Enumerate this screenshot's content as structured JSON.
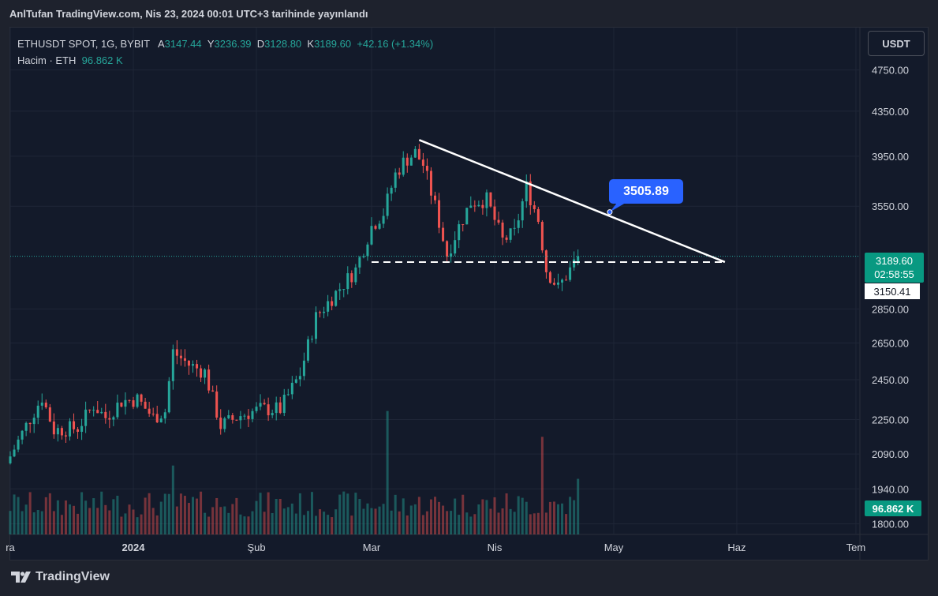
{
  "header": {
    "publish_text": "AnlTufan TradingView.com, Nis 23, 2024 00:01 UTC+3 tarihinde yayınlandı"
  },
  "legend": {
    "symbol_line": "ETHUSDT SPOT, 1G, BYBIT",
    "open_label": "A",
    "open_value": "3147.44",
    "high_label": "Y",
    "high_value": "3236.39",
    "low_label": "D",
    "low_value": "3128.80",
    "close_label": "K",
    "close_value": "3189.60",
    "change": "+42.16 (+1.34%)",
    "volume_label": "Hacim · ETH",
    "volume_value": "96.862 K"
  },
  "toolbar": {
    "currency_button": "USDT"
  },
  "price_tags": {
    "last_price": "3189.60",
    "countdown": "02:58:55",
    "line_price": "3150.41",
    "volume": "96.862 K"
  },
  "annotation": {
    "callout_price": "3505.89"
  },
  "footer": {
    "brand": "TradingView"
  },
  "colors": {
    "up": "#26a69a",
    "down": "#ef5350",
    "background": "#131a2a",
    "callout": "#2962ff"
  },
  "chart_data": {
    "type": "candlestick",
    "y_ticks": [
      "4750.00",
      "4350.00",
      "3950.00",
      "3550.00",
      "2850.00",
      "2650.00",
      "2450.00",
      "2250.00",
      "2090.00",
      "1940.00",
      "1800.00"
    ],
    "y_scale": "log",
    "ylim": [
      1760,
      5200
    ],
    "x_ticks": [
      {
        "label": "ra",
        "date": "2023-12-01"
      },
      {
        "label": "2024",
        "date": "2024-01-01"
      },
      {
        "label": "Şub",
        "date": "2024-02-01"
      },
      {
        "label": "Mar",
        "date": "2024-03-01"
      },
      {
        "label": "Nis",
        "date": "2024-04-01"
      },
      {
        "label": "May",
        "date": "2024-05-01"
      },
      {
        "label": "Haz",
        "date": "2024-06-01"
      },
      {
        "label": "Tem",
        "date": "2024-07-01"
      }
    ],
    "xlim": [
      "2023-12-01",
      "2024-07-02"
    ],
    "series_close_anchors": [
      {
        "date": "2023-12-01",
        "close": 2080
      },
      {
        "date": "2023-12-05",
        "close": 2220
      },
      {
        "date": "2023-12-09",
        "close": 2360
      },
      {
        "date": "2023-12-12",
        "close": 2200
      },
      {
        "date": "2023-12-18",
        "close": 2210
      },
      {
        "date": "2023-12-22",
        "close": 2320
      },
      {
        "date": "2023-12-25",
        "close": 2260
      },
      {
        "date": "2023-12-29",
        "close": 2340
      },
      {
        "date": "2024-01-02",
        "close": 2350
      },
      {
        "date": "2024-01-06",
        "close": 2260
      },
      {
        "date": "2024-01-09",
        "close": 2290
      },
      {
        "date": "2024-01-11",
        "close": 2600
      },
      {
        "date": "2024-01-15",
        "close": 2530
      },
      {
        "date": "2024-01-19",
        "close": 2490
      },
      {
        "date": "2024-01-23",
        "close": 2220
      },
      {
        "date": "2024-01-28",
        "close": 2270
      },
      {
        "date": "2024-02-02",
        "close": 2300
      },
      {
        "date": "2024-02-07",
        "close": 2300
      },
      {
        "date": "2024-02-12",
        "close": 2480
      },
      {
        "date": "2024-02-16",
        "close": 2800
      },
      {
        "date": "2024-02-21",
        "close": 2950
      },
      {
        "date": "2024-02-26",
        "close": 3100
      },
      {
        "date": "2024-03-01",
        "close": 3400
      },
      {
        "date": "2024-03-04",
        "close": 3500
      },
      {
        "date": "2024-03-07",
        "close": 3800
      },
      {
        "date": "2024-03-09",
        "close": 3900
      },
      {
        "date": "2024-03-12",
        "close": 3980
      },
      {
        "date": "2024-03-14",
        "close": 3880
      },
      {
        "date": "2024-03-17",
        "close": 3550
      },
      {
        "date": "2024-03-20",
        "close": 3200
      },
      {
        "date": "2024-03-23",
        "close": 3400
      },
      {
        "date": "2024-03-26",
        "close": 3580
      },
      {
        "date": "2024-03-30",
        "close": 3600
      },
      {
        "date": "2024-04-03",
        "close": 3300
      },
      {
        "date": "2024-04-06",
        "close": 3350
      },
      {
        "date": "2024-04-09",
        "close": 3700
      },
      {
        "date": "2024-04-12",
        "close": 3450
      },
      {
        "date": "2024-04-14",
        "close": 3100
      },
      {
        "date": "2024-04-17",
        "close": 2980
      },
      {
        "date": "2024-04-20",
        "close": 3100
      },
      {
        "date": "2024-04-22",
        "close": 3189.6
      }
    ],
    "last_candle": {
      "date": "2024-04-22",
      "open": 3147.44,
      "high": 3236.39,
      "low": 3128.8,
      "close": 3189.6,
      "change": 42.16,
      "change_pct": 1.34
    },
    "volume_peaks_k": [
      {
        "date": "2024-01-11",
        "volume": 120
      },
      {
        "date": "2024-03-05",
        "volume": 215
      },
      {
        "date": "2024-04-13",
        "volume": 170
      }
    ],
    "last_volume_k": 96.862,
    "drawings": {
      "trendline": [
        {
          "date": "2024-03-13",
          "price": 4090
        },
        {
          "date": "2024-05-29",
          "price": 3150.41
        }
      ],
      "horizontal_line": {
        "price": 3150.41,
        "from": "2024-03-01",
        "to": "2024-05-29"
      },
      "callout": {
        "date": "2024-04-30",
        "price": 3505.89
      }
    }
  }
}
